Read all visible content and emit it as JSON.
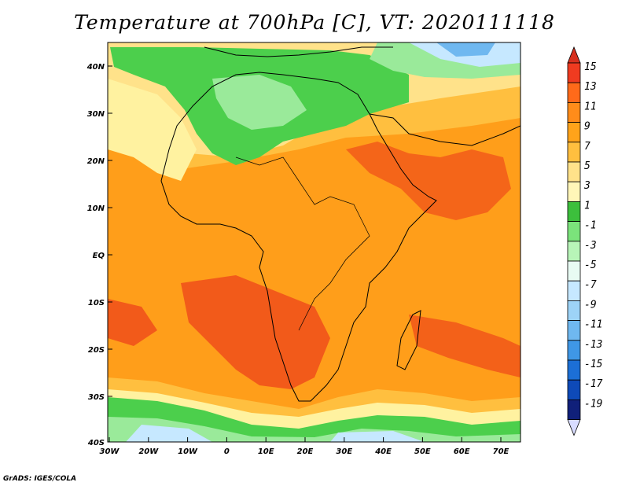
{
  "title": "Temperature at 700hPa [C], VT: 2020111118",
  "credit": "GrADS: IGES/COLA",
  "y_axis_labels": [
    "40N",
    "30N",
    "20N",
    "10N",
    "EQ",
    "10S",
    "20S",
    "30S",
    "40S"
  ],
  "x_axis_labels": [
    "30W",
    "20W",
    "10W",
    "0",
    "10E",
    "20E",
    "30E",
    "40E",
    "50E",
    "60E",
    "70E"
  ],
  "colorbar": {
    "labels": [
      "15",
      "13",
      "11",
      "9",
      "7",
      "5",
      "3",
      "1",
      "-1",
      "-3",
      "-5",
      "-7",
      "-9",
      "-11",
      "-13",
      "-15",
      "-17",
      "-19"
    ],
    "colors": [
      "#d7301f",
      "#f03b20",
      "#ff6a1a",
      "#ff8c1a",
      "#ffa31a",
      "#ffbf3f",
      "#ffe28a",
      "#fff6b8",
      "#3cbf3c",
      "#7be37b",
      "#b8f5b8",
      "#e8fbf3",
      "#c6e8ff",
      "#9dd3f7",
      "#6fb8f0",
      "#3f97e6",
      "#1c6fd6",
      "#0e4ab8",
      "#10207a",
      "#d8dcff"
    ]
  },
  "colors": {
    "ocean_warm": "#ff9e1a",
    "land_warm": "#ffaa33",
    "hot": "#f25a1a",
    "cool_green": "#4ccf4c",
    "light_green": "#9aea9a",
    "yellow": "#fff2a0",
    "cold_blue": "#7fbff0"
  }
}
